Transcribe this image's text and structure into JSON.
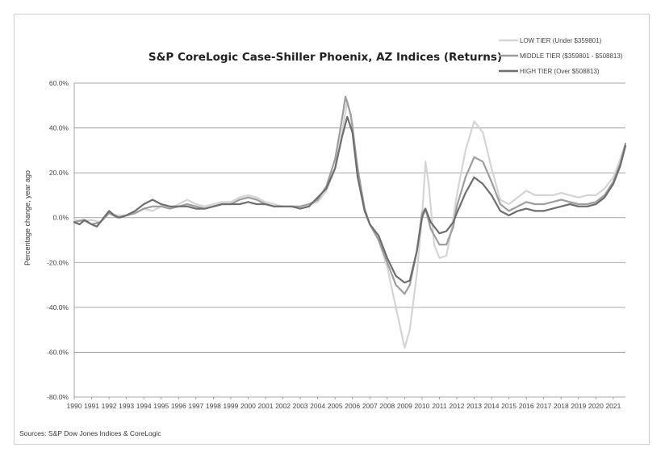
{
  "chart_data": {
    "type": "line",
    "title": "S&P CoreLogic Case-Shiller Phoenix, AZ Indices (Returns)",
    "ylabel": "Percentage change, year ago",
    "xlabel": "",
    "ylim": [
      -80,
      60
    ],
    "xlim": [
      1990,
      2021.7
    ],
    "grid": "horizontal",
    "legend_position": "top-right",
    "y_ticks": [
      60,
      40,
      20,
      0,
      -20,
      -40,
      -60,
      -80
    ],
    "y_tick_labels": [
      "60.0%",
      "40.0%",
      "20.0%",
      "0.0%",
      "-20.0%",
      "-40.0%",
      "-60.0%",
      "-80.0%"
    ],
    "x_tick_labels": [
      "1990",
      "1991",
      "1992",
      "1993",
      "1994",
      "1995",
      "1996",
      "1997",
      "1998",
      "1999",
      "2000",
      "2001",
      "2002",
      "2003",
      "2004",
      "2005",
      "2006",
      "2007",
      "2008",
      "2009",
      "2010",
      "2011",
      "2012",
      "2013",
      "2014",
      "2015",
      "2016",
      "2017",
      "2018",
      "2019",
      "2020",
      "2021"
    ],
    "source": "Sources: S&P Dow Jones Indices & CoreLogic",
    "series": [
      {
        "name": "LOW TIER (Under $359801)",
        "color": "#d4d4d4",
        "points": [
          [
            1990,
            -1
          ],
          [
            1990.5,
            -1.5
          ],
          [
            1991,
            -1
          ],
          [
            1991.5,
            -2
          ],
          [
            1992,
            2
          ],
          [
            1992.5,
            1
          ],
          [
            1993,
            1
          ],
          [
            1993.5,
            2
          ],
          [
            1994,
            4
          ],
          [
            1994.5,
            3
          ],
          [
            1995,
            5
          ],
          [
            1995.5,
            4
          ],
          [
            1996,
            6
          ],
          [
            1996.5,
            8
          ],
          [
            1997,
            6
          ],
          [
            1997.5,
            5
          ],
          [
            1998,
            6
          ],
          [
            1998.5,
            7
          ],
          [
            1999,
            7
          ],
          [
            1999.5,
            9
          ],
          [
            2000,
            10
          ],
          [
            2000.5,
            9
          ],
          [
            2001,
            7
          ],
          [
            2001.5,
            6
          ],
          [
            2002,
            5
          ],
          [
            2002.5,
            5
          ],
          [
            2003,
            5
          ],
          [
            2003.5,
            6
          ],
          [
            2004,
            7
          ],
          [
            2004.5,
            12
          ],
          [
            2005,
            22
          ],
          [
            2005.4,
            38
          ],
          [
            2005.7,
            52
          ],
          [
            2006,
            42
          ],
          [
            2006.3,
            20
          ],
          [
            2006.7,
            4
          ],
          [
            2007,
            -3
          ],
          [
            2007.5,
            -10
          ],
          [
            2008,
            -22
          ],
          [
            2008.5,
            -40
          ],
          [
            2009,
            -58
          ],
          [
            2009.3,
            -50
          ],
          [
            2009.7,
            -25
          ],
          [
            2010,
            0
          ],
          [
            2010.2,
            25
          ],
          [
            2010.4,
            14
          ],
          [
            2010.7,
            -12
          ],
          [
            2011,
            -18
          ],
          [
            2011.4,
            -17
          ],
          [
            2011.7,
            -5
          ],
          [
            2012,
            10
          ],
          [
            2012.5,
            30
          ],
          [
            2013,
            43
          ],
          [
            2013.5,
            38
          ],
          [
            2014,
            22
          ],
          [
            2014.5,
            8
          ],
          [
            2015,
            6
          ],
          [
            2015.5,
            9
          ],
          [
            2016,
            12
          ],
          [
            2016.5,
            10
          ],
          [
            2017,
            10
          ],
          [
            2017.5,
            10
          ],
          [
            2018,
            11
          ],
          [
            2018.5,
            10
          ],
          [
            2019,
            9
          ],
          [
            2019.5,
            10
          ],
          [
            2020,
            10
          ],
          [
            2020.5,
            13
          ],
          [
            2021,
            18
          ],
          [
            2021.4,
            26
          ],
          [
            2021.7,
            33
          ]
        ]
      },
      {
        "name": "MIDDLE TIER ($359801 - $508813)",
        "color": "#9d9d9d",
        "points": [
          [
            1990,
            -2
          ],
          [
            1990.5,
            -1
          ],
          [
            1991,
            -3
          ],
          [
            1991.5,
            -2
          ],
          [
            1992,
            2
          ],
          [
            1992.5,
            0
          ],
          [
            1993,
            1
          ],
          [
            1993.5,
            2
          ],
          [
            1994,
            4
          ],
          [
            1994.5,
            5
          ],
          [
            1995,
            5
          ],
          [
            1995.5,
            4
          ],
          [
            1996,
            5
          ],
          [
            1996.5,
            6
          ],
          [
            1997,
            5
          ],
          [
            1997.5,
            4
          ],
          [
            1998,
            5
          ],
          [
            1998.5,
            6
          ],
          [
            1999,
            6
          ],
          [
            1999.5,
            8
          ],
          [
            2000,
            9
          ],
          [
            2000.5,
            8
          ],
          [
            2001,
            6
          ],
          [
            2001.5,
            5
          ],
          [
            2002,
            5
          ],
          [
            2002.5,
            5
          ],
          [
            2003,
            5
          ],
          [
            2003.5,
            6
          ],
          [
            2004,
            8
          ],
          [
            2004.5,
            14
          ],
          [
            2005,
            26
          ],
          [
            2005.4,
            44
          ],
          [
            2005.6,
            54
          ],
          [
            2005.9,
            46
          ],
          [
            2006.3,
            22
          ],
          [
            2006.7,
            4
          ],
          [
            2007,
            -3
          ],
          [
            2007.5,
            -10
          ],
          [
            2008,
            -20
          ],
          [
            2008.5,
            -30
          ],
          [
            2009,
            -34
          ],
          [
            2009.3,
            -30
          ],
          [
            2009.7,
            -15
          ],
          [
            2010,
            2
          ],
          [
            2010.2,
            4
          ],
          [
            2010.5,
            -5
          ],
          [
            2011,
            -12
          ],
          [
            2011.4,
            -12
          ],
          [
            2011.8,
            -4
          ],
          [
            2012,
            5
          ],
          [
            2012.5,
            18
          ],
          [
            2013,
            27
          ],
          [
            2013.5,
            25
          ],
          [
            2014,
            16
          ],
          [
            2014.5,
            6
          ],
          [
            2015,
            3
          ],
          [
            2015.5,
            5
          ],
          [
            2016,
            7
          ],
          [
            2016.5,
            6
          ],
          [
            2017,
            6
          ],
          [
            2017.5,
            7
          ],
          [
            2018,
            8
          ],
          [
            2018.5,
            7
          ],
          [
            2019,
            6
          ],
          [
            2019.5,
            6
          ],
          [
            2020,
            7
          ],
          [
            2020.5,
            10
          ],
          [
            2021,
            16
          ],
          [
            2021.4,
            24
          ],
          [
            2021.7,
            33
          ]
        ]
      },
      {
        "name": "HIGH TIER (Over $508813)",
        "color": "#6e6e6e",
        "points": [
          [
            1990,
            -2
          ],
          [
            1990.3,
            -3
          ],
          [
            1990.6,
            -1
          ],
          [
            1991,
            -3
          ],
          [
            1991.3,
            -4
          ],
          [
            1991.6,
            -1
          ],
          [
            1992,
            3
          ],
          [
            1992.3,
            1
          ],
          [
            1992.6,
            0
          ],
          [
            1993,
            1
          ],
          [
            1993.5,
            3
          ],
          [
            1994,
            6
          ],
          [
            1994.5,
            8
          ],
          [
            1995,
            6
          ],
          [
            1995.5,
            5
          ],
          [
            1996,
            5
          ],
          [
            1996.5,
            5
          ],
          [
            1997,
            4
          ],
          [
            1997.5,
            4
          ],
          [
            1998,
            5
          ],
          [
            1998.5,
            6
          ],
          [
            1999,
            6
          ],
          [
            1999.5,
            6
          ],
          [
            2000,
            7
          ],
          [
            2000.5,
            6
          ],
          [
            2001,
            6
          ],
          [
            2001.5,
            5
          ],
          [
            2002,
            5
          ],
          [
            2002.5,
            5
          ],
          [
            2003,
            4
          ],
          [
            2003.5,
            5
          ],
          [
            2004,
            9
          ],
          [
            2004.5,
            13
          ],
          [
            2005,
            22
          ],
          [
            2005.4,
            36
          ],
          [
            2005.7,
            45
          ],
          [
            2006,
            38
          ],
          [
            2006.3,
            18
          ],
          [
            2006.7,
            3
          ],
          [
            2007,
            -3
          ],
          [
            2007.5,
            -8
          ],
          [
            2008,
            -18
          ],
          [
            2008.5,
            -26
          ],
          [
            2009,
            -29
          ],
          [
            2009.3,
            -28
          ],
          [
            2009.7,
            -15
          ],
          [
            2010,
            0
          ],
          [
            2010.2,
            4
          ],
          [
            2010.5,
            -2
          ],
          [
            2011,
            -7
          ],
          [
            2011.4,
            -6
          ],
          [
            2011.8,
            -2
          ],
          [
            2012,
            2
          ],
          [
            2012.5,
            11
          ],
          [
            2013,
            18
          ],
          [
            2013.5,
            15
          ],
          [
            2014,
            10
          ],
          [
            2014.5,
            3
          ],
          [
            2015,
            1
          ],
          [
            2015.5,
            3
          ],
          [
            2016,
            4
          ],
          [
            2016.5,
            3
          ],
          [
            2017,
            3
          ],
          [
            2017.5,
            4
          ],
          [
            2018,
            5
          ],
          [
            2018.5,
            6
          ],
          [
            2019,
            5
          ],
          [
            2019.5,
            5
          ],
          [
            2020,
            6
          ],
          [
            2020.5,
            9
          ],
          [
            2021,
            15
          ],
          [
            2021.4,
            23
          ],
          [
            2021.7,
            32
          ]
        ]
      }
    ]
  }
}
